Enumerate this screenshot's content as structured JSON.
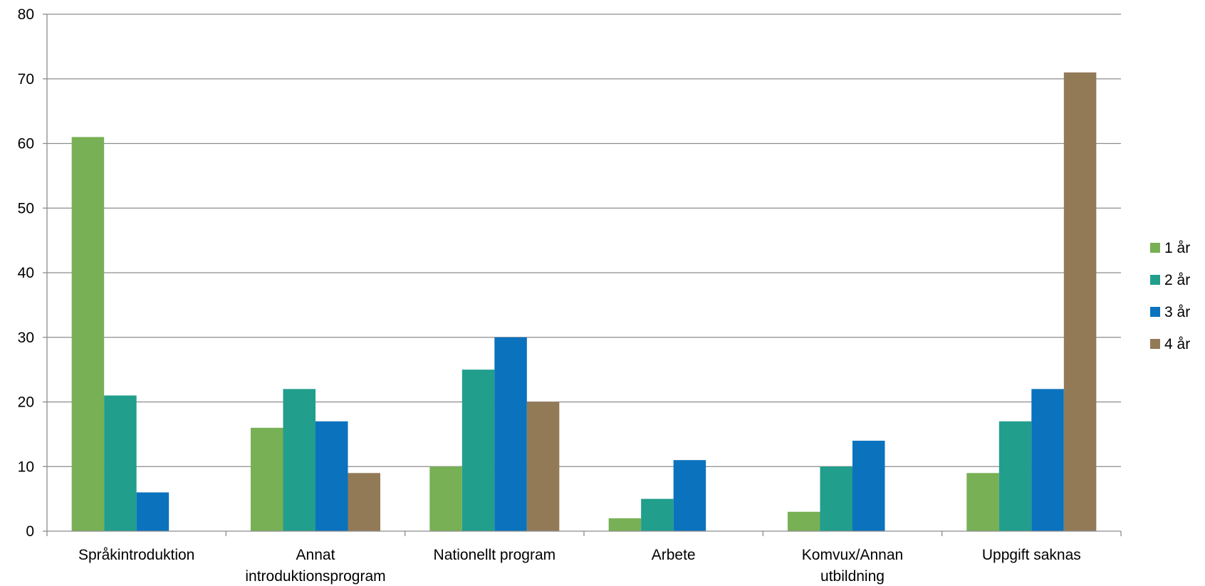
{
  "chart_data": {
    "type": "bar",
    "title": "",
    "xlabel": "",
    "ylabel": "",
    "ylim": [
      0,
      80
    ],
    "yticks": [
      0,
      10,
      20,
      30,
      40,
      50,
      60,
      70,
      80
    ],
    "grid": true,
    "legend_position": "right",
    "categories": [
      [
        "Språkintroduktion"
      ],
      [
        "Annat",
        "introduktionsprogram"
      ],
      [
        "Nationellt program"
      ],
      [
        "Arbete"
      ],
      [
        "Komvux/Annan",
        "utbildning"
      ],
      [
        "Uppgift saknas"
      ]
    ],
    "series": [
      {
        "name": "1 år",
        "color": "#77b055",
        "values": [
          61,
          16,
          10,
          2,
          3,
          9
        ]
      },
      {
        "name": "2 år",
        "color": "#219e8c",
        "values": [
          21,
          22,
          25,
          5,
          10,
          17
        ]
      },
      {
        "name": "3 år",
        "color": "#0b72bd",
        "values": [
          6,
          17,
          30,
          11,
          14,
          22
        ]
      },
      {
        "name": "4 år",
        "color": "#937a57",
        "values": [
          0,
          9,
          20,
          0,
          0,
          71
        ]
      }
    ]
  }
}
